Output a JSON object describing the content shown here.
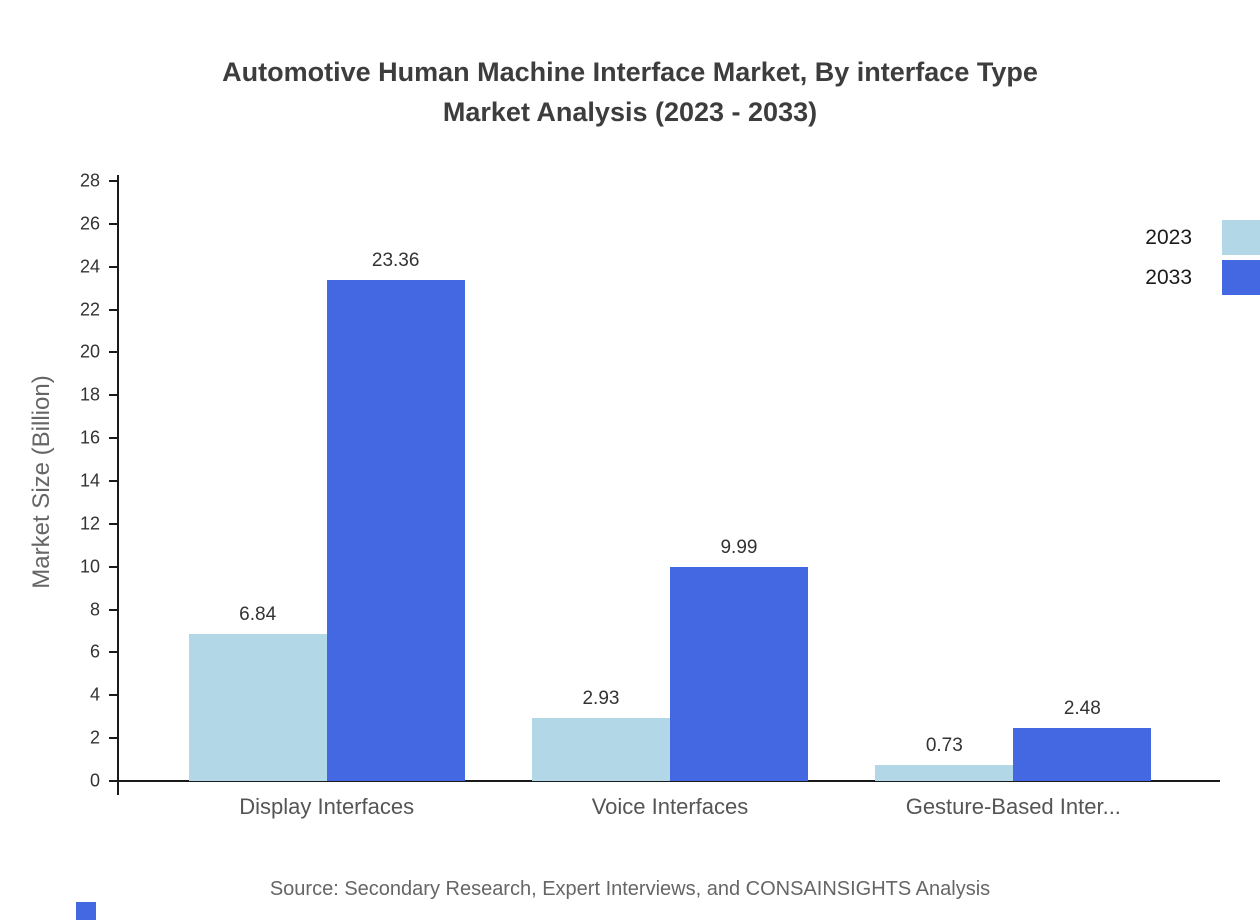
{
  "title": {
    "line1": "Automotive Human Machine Interface Market, By interface Type",
    "line2": "Market Analysis (2023 - 2033)"
  },
  "chart_data": {
    "type": "bar",
    "categories": [
      "Display Interfaces",
      "Voice Interfaces",
      "Gesture-Based Inter..."
    ],
    "series": [
      {
        "name": "2023",
        "color": "#b2d8e8",
        "values": [
          6.84,
          2.93,
          0.73
        ]
      },
      {
        "name": "2033",
        "color": "#4467e2",
        "values": [
          23.36,
          9.99,
          2.48
        ]
      }
    ],
    "title": "Automotive Human Machine Interface Market, By interface Type Market Analysis (2023 - 2033)",
    "xlabel": "",
    "ylabel": "Market Size (Billion)",
    "ylim": [
      0,
      28
    ],
    "y_tick_step": 2,
    "grid": false,
    "legend_position": "top-right"
  },
  "source": "Source: Secondary Research, Expert Interviews, and CONSAINSIGHTS Analysis"
}
